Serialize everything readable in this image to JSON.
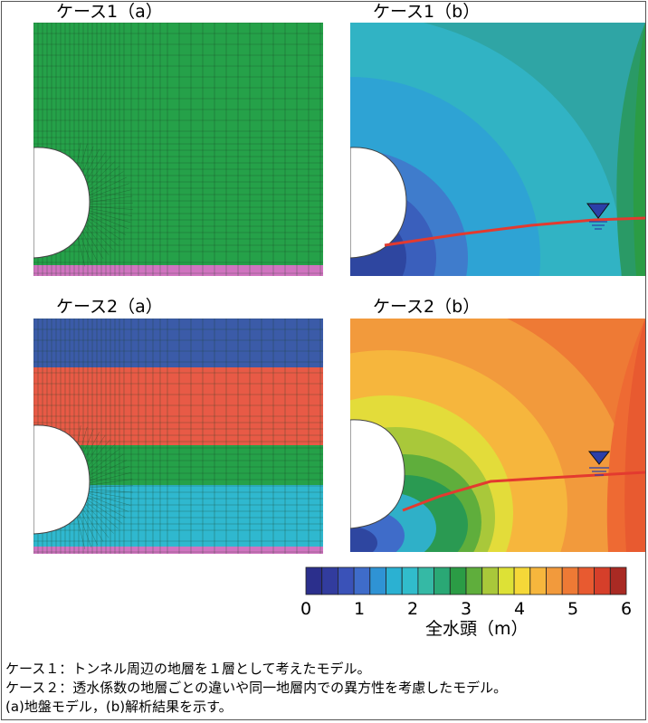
{
  "panels": {
    "case1a": {
      "title": "ケース1（a）"
    },
    "case1b": {
      "title": "ケース1（b）"
    },
    "case2a": {
      "title": "ケース2（a）"
    },
    "case2b": {
      "title": "ケース2（b）"
    }
  },
  "colorbar": {
    "title": "全水頭（m）",
    "ticks": [
      "0",
      "1",
      "2",
      "3",
      "4",
      "5",
      "6"
    ],
    "colors": [
      "#2b2f8c",
      "#323c9e",
      "#3a52b8",
      "#3f6cc9",
      "#2f93d4",
      "#2bb1d2",
      "#31bccb",
      "#35b9a5",
      "#2aa875",
      "#2b9c45",
      "#5fae3c",
      "#a9c83a",
      "#dde136",
      "#f5d838",
      "#f6b63d",
      "#f29a3c",
      "#ee7a35",
      "#e85a30",
      "#d63f2a",
      "#a92a23"
    ]
  },
  "layers": {
    "case1": [
      {
        "name": "ground",
        "color": "#25a149"
      },
      {
        "name": "base",
        "color": "#d074c0"
      }
    ],
    "case2": [
      {
        "name": "layer1",
        "color": "#3b5ba8"
      },
      {
        "name": "layer2",
        "color": "#e85a46"
      },
      {
        "name": "layer3",
        "color": "#25a149"
      },
      {
        "name": "layer4",
        "color": "#2fb8cf"
      },
      {
        "name": "base",
        "color": "#d074c0"
      }
    ]
  },
  "captions": [
    "ケース１：トンネル周辺の地層を１層として考えたモデル。",
    "ケース２：透水係数の地層ごとの違いや同一地層内での異方性を考慮したモデル。",
    "(a)地盤モデル，(b)解析結果を示す。"
  ]
}
